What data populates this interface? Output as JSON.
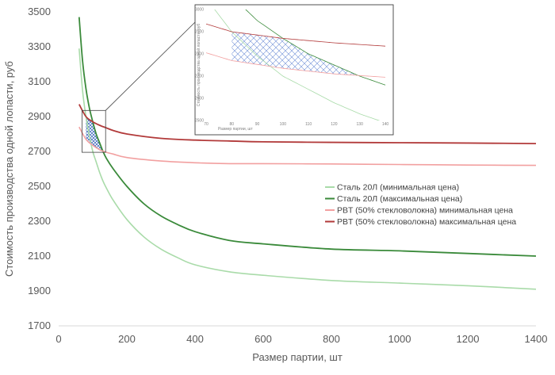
{
  "chart_data": {
    "type": "line",
    "title": "",
    "xlabel": "Размер партии, шт",
    "ylabel": "Стоимость производства одной лопасти, руб",
    "xlim": [
      0,
      1400
    ],
    "ylim": [
      1700,
      3500
    ],
    "xticks": [
      0,
      200,
      400,
      600,
      800,
      1000,
      1200,
      1400
    ],
    "yticks": [
      1700,
      1900,
      2100,
      2300,
      2500,
      2700,
      2900,
      3100,
      3300,
      3500
    ],
    "grid": false,
    "legend_position": "right",
    "series": [
      {
        "name": "Сталь 20Л (минимальная цена)",
        "color": "#a9dba9",
        "x": [
          60,
          70,
          80,
          90,
          100,
          110,
          120,
          130,
          140,
          160,
          200,
          250,
          300,
          350,
          400,
          500,
          600,
          800,
          1000,
          1200,
          1400
        ],
        "y": [
          3290,
          3050,
          2900,
          2790,
          2700,
          2640,
          2580,
          2530,
          2490,
          2420,
          2310,
          2210,
          2140,
          2090,
          2050,
          2010,
          1990,
          1960,
          1945,
          1930,
          1910
        ]
      },
      {
        "name": "Сталь 20Л (максимальная цена)",
        "color": "#3a8a3a",
        "x": [
          60,
          70,
          80,
          90,
          100,
          110,
          120,
          130,
          140,
          160,
          200,
          250,
          300,
          350,
          400,
          500,
          600,
          800,
          1000,
          1200,
          1400
        ],
        "y": [
          3470,
          3220,
          3060,
          2950,
          2870,
          2800,
          2750,
          2700,
          2660,
          2600,
          2500,
          2400,
          2330,
          2280,
          2240,
          2190,
          2170,
          2140,
          2130,
          2115,
          2100
        ]
      },
      {
        "name": "PBT (50% стекловолокна) минимальная цена",
        "color": "#f2a0a0",
        "x": [
          60,
          80,
          100,
          120,
          140,
          160,
          200,
          300,
          400,
          500,
          600,
          800,
          1000,
          1200,
          1400
        ],
        "y": [
          2840,
          2770,
          2735,
          2710,
          2695,
          2685,
          2665,
          2645,
          2635,
          2630,
          2630,
          2628,
          2625,
          2622,
          2620
        ]
      },
      {
        "name": "PBT (50% стекловолокна) максимальная цена",
        "color": "#b23a3a",
        "x": [
          60,
          80,
          100,
          120,
          140,
          160,
          200,
          300,
          400,
          500,
          600,
          800,
          1000,
          1200,
          1400
        ],
        "y": [
          2970,
          2900,
          2870,
          2850,
          2835,
          2820,
          2800,
          2775,
          2765,
          2760,
          2755,
          2752,
          2750,
          2748,
          2745
        ]
      }
    ],
    "inset": {
      "xlim": [
        70,
        140
      ],
      "ylim": [
        2500,
        3000
      ],
      "xticks": [
        70,
        80,
        90,
        100,
        110,
        120,
        130,
        140
      ],
      "yticks": [
        2500,
        2600,
        2700,
        2800,
        2900,
        3000
      ],
      "xlabel": "Размер партии, шт",
      "ylabel": "Стоимость производства одной лопасти, руб"
    },
    "highlight_region": {
      "x_range": [
        80,
        140
      ],
      "y_range": [
        2700,
        2930
      ]
    }
  }
}
